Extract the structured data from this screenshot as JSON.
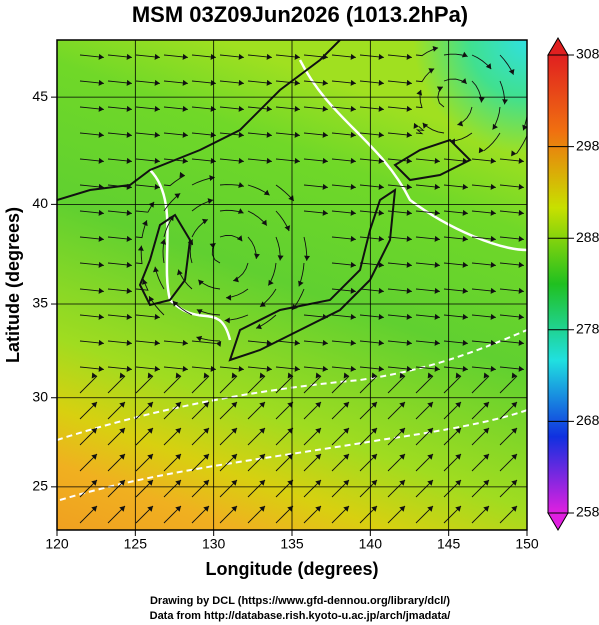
{
  "header": {
    "title": "MSM 03Z09Jun2026 (1013.2hPa)"
  },
  "map": {
    "xlabel": "Longitude (degrees)",
    "ylabel": "Latitude  (degrees)",
    "xlim": [
      120,
      150
    ],
    "ylim": [
      22.5,
      47.5
    ],
    "projection": "mercator",
    "xticks": [
      120,
      125,
      130,
      135,
      140,
      145,
      150
    ],
    "yticks": [
      25,
      30,
      35,
      40,
      45
    ],
    "grid": true
  },
  "colorbar": {
    "lim": [
      258,
      308
    ],
    "ticks": [
      258,
      268,
      278,
      288,
      298,
      308
    ],
    "colors": [
      "#e020e0",
      "#1030e0",
      "#20e0e0",
      "#20c020",
      "#c8e000",
      "#f07010",
      "#e02020"
    ]
  },
  "footer": {
    "lines": [
      "Drawing by DCL (https://www.gfd-dennou.org/library/dcl/)",
      "Data from http://database.rish.kyoto-u.ac.jp/arch/jmadata/"
    ]
  }
}
